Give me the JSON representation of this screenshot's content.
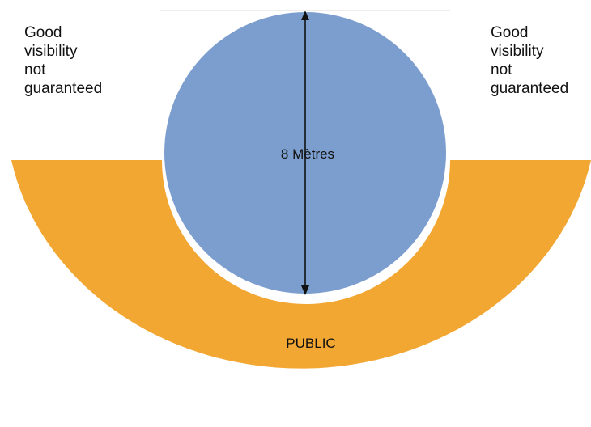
{
  "labels": {
    "left": [
      "Good",
      "visibility",
      "not",
      "guaranteed"
    ],
    "right": [
      "Good",
      "visibility",
      "not",
      "guaranteed"
    ],
    "diameter": "8 Mètres",
    "audience": "PUBLIC"
  },
  "colors": {
    "stage": "#7c9ecf",
    "public": "#f3a733",
    "arrow": "#111111",
    "text": "#111111",
    "background": "#ffffff"
  }
}
